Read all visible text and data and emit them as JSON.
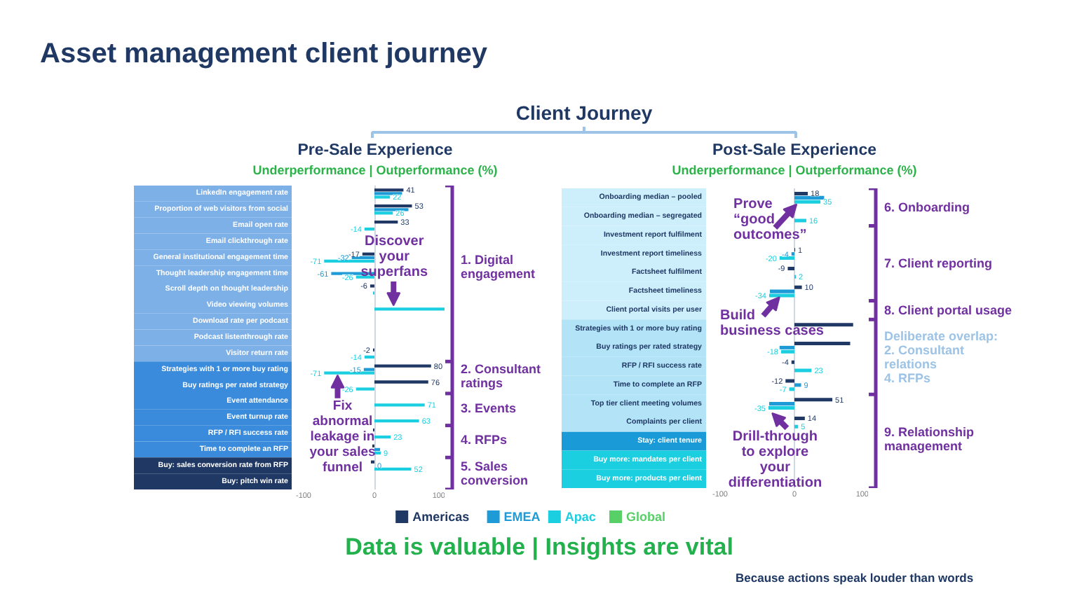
{
  "chart_data": [
    {
      "type": "bar",
      "orientation": "horizontal",
      "title": "Pre-Sale Experience",
      "subtitle": "Underperformance | Outperformance (%)",
      "categories": [
        "LinkedIn engagement rate",
        "Proportion of web visitors from social",
        "Email open rate",
        "Email clickthrough rate",
        "General institutional engagement time",
        "Thought leadership engagement time",
        "Scroll depth on thought leadership",
        "Video viewing volumes",
        "Download rate per podcast",
        "Podcast listenthrough rate",
        "Visitor return rate",
        "Strategies with 1 or more buy rating",
        "Buy ratings per rated strategy",
        "Event attendance",
        "Event turnup rate",
        "RFP / RFI success rate",
        "Time to complete an RFP",
        "Buy: sales conversion rate from RFP",
        "Buy: pitch win rate"
      ],
      "series": [
        {
          "name": "Americas",
          "color": "#1f3864",
          "values": [
            41,
            53,
            33,
            null,
            -17,
            null,
            -6,
            null,
            null,
            null,
            -2,
            80,
            76,
            null,
            null,
            -2,
            -3,
            -5,
            null
          ],
          "value_labels": [
            "41",
            "53",
            "33",
            null,
            "-17",
            null,
            "-6",
            null,
            null,
            null,
            "-2",
            "80",
            "76",
            null,
            null,
            null,
            null,
            null,
            null
          ]
        },
        {
          "name": "EMEA",
          "color": "#1e9bd7",
          "values": [
            39,
            48,
            null,
            null,
            -32,
            -61,
            null,
            null,
            null,
            null,
            null,
            -15,
            null,
            null,
            null,
            null,
            8,
            0,
            null
          ],
          "value_labels": [
            null,
            null,
            null,
            null,
            "-32",
            "-61",
            null,
            null,
            null,
            null,
            null,
            "-15",
            null,
            null,
            null,
            null,
            null,
            "0",
            null
          ]
        },
        {
          "name": "Apac",
          "color": "#1ccfe0",
          "values": [
            22,
            26,
            -14,
            null,
            -71,
            -26,
            -2,
            100,
            null,
            null,
            -14,
            -71,
            -26,
            71,
            63,
            23,
            9,
            52,
            null
          ],
          "value_labels": [
            "22",
            "26",
            "-14",
            null,
            "-71",
            "-26",
            null,
            null,
            null,
            null,
            "-14",
            "-71",
            "-26",
            "71",
            "63",
            "23",
            "9",
            "52",
            null
          ]
        },
        {
          "name": "Global",
          "color": "#58d068",
          "values": [
            null,
            null,
            null,
            null,
            null,
            null,
            null,
            null,
            null,
            null,
            null,
            null,
            null,
            null,
            null,
            null,
            null,
            null,
            null
          ]
        }
      ],
      "xlim": [
        -100,
        100
      ],
      "xticks": [
        -100,
        0,
        100
      ],
      "grid": "x",
      "legend": "bottom",
      "annotations": [
        "Asset management client journey",
        "Client Journey",
        "1. Digital engagement",
        "2. Consultant ratings",
        "3. Events",
        "4. RFPs",
        "5. Sales conversion",
        "Discover your superfans",
        "Fix abnormal leakage in your sales funnel",
        "Data is valuable | Insights are vital",
        "Because actions speak louder than words"
      ]
    },
    {
      "type": "bar",
      "orientation": "horizontal",
      "title": "Post-Sale Experience",
      "subtitle": "Underperformance | Outperformance (%)",
      "categories": [
        "Onboarding median – pooled",
        "Onboarding median – segregated",
        "Investment report fulfilment",
        "Investment report timeliness",
        "Factsheet fulfilment",
        "Factsheet timeliness",
        "Client portal visits per user",
        "Strategies with 1 or more buy rating",
        "Buy ratings per rated strategy",
        "RFP / RFI success rate",
        "Time to complete an RFP",
        "Top tier client meeting volumes",
        "Complaints per client",
        "Stay: client tenure",
        "Buy more: mandates per client",
        "Buy more: products per client"
      ],
      "series": [
        {
          "name": "Americas",
          "color": "#1f3864",
          "values": [
            18,
            null,
            null,
            1,
            -9,
            10,
            null,
            79,
            75,
            -4,
            -12,
            51,
            14,
            null,
            null,
            null
          ],
          "value_labels": [
            "18",
            null,
            null,
            "1",
            "-9",
            "10",
            null,
            null,
            null,
            "-4",
            "-12",
            "51",
            "14",
            null,
            null,
            null
          ]
        },
        {
          "name": "EMEA",
          "color": "#1e9bd7",
          "values": [
            40,
            null,
            null,
            -4,
            null,
            -33,
            null,
            null,
            -20,
            null,
            9,
            -34,
            null,
            null,
            null,
            null
          ],
          "value_labels": [
            null,
            null,
            null,
            "-4",
            null,
            null,
            null,
            null,
            null,
            null,
            "9",
            null,
            null,
            null,
            null,
            null
          ]
        },
        {
          "name": "Apac",
          "color": "#1ccfe0",
          "values": [
            35,
            16,
            null,
            -20,
            2,
            -34,
            null,
            null,
            -18,
            23,
            -7,
            -35,
            5,
            null,
            null,
            null
          ],
          "value_labels": [
            "35",
            "16",
            null,
            "-20",
            "2",
            "-34",
            null,
            null,
            "-18",
            "23",
            "-7",
            "-35",
            "5",
            null,
            null,
            null
          ]
        }
      ],
      "xlim": [
        -100,
        100
      ],
      "xticks": [
        -100,
        0,
        100
      ],
      "grid": "x",
      "legend": "bottom",
      "annotations": [
        "6. Onboarding",
        "7. Client reporting",
        "8. Client portal usage",
        "Deliberate overlap: 2. Consultant relations 4. RFPs",
        "9. Relationship management",
        "Prove “good outcomes”",
        "Build business cases",
        "Drill-through to explore your differentiation"
      ]
    }
  ]
}
